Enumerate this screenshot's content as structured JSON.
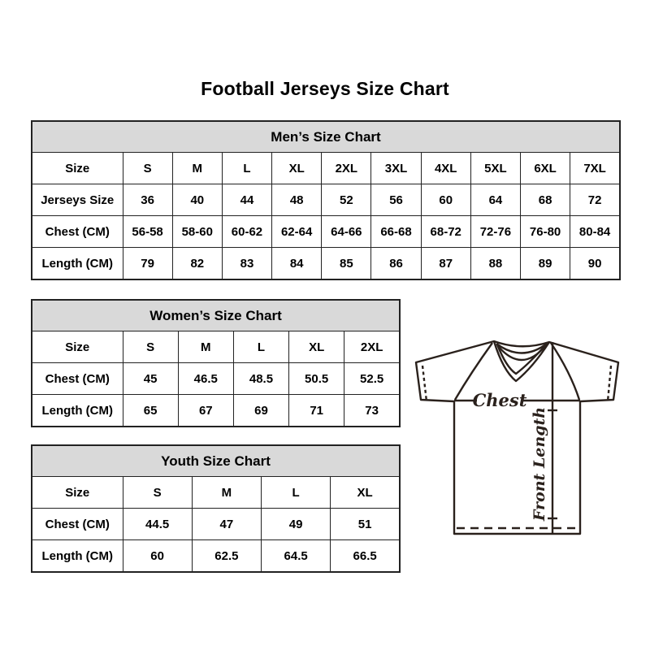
{
  "page": {
    "title": "Football Jerseys Size Chart"
  },
  "colors": {
    "table_border": "#222222",
    "header_bg": "#d9d9d9",
    "text": "#000000",
    "diagram_line": "#2a211c"
  },
  "tables": [
    {
      "id": "mens",
      "title": "Men’s Size Chart",
      "rows": [
        [
          "Size",
          "S",
          "M",
          "L",
          "XL",
          "2XL",
          "3XL",
          "4XL",
          "5XL",
          "6XL",
          "7XL"
        ],
        [
          "Jerseys Size",
          "36",
          "40",
          "44",
          "48",
          "52",
          "56",
          "60",
          "64",
          "68",
          "72"
        ],
        [
          "Chest (CM)",
          "56-58",
          "58-60",
          "60-62",
          "62-64",
          "64-66",
          "66-68",
          "68-72",
          "72-76",
          "76-80",
          "80-84"
        ],
        [
          "Length (CM)",
          "79",
          "82",
          "83",
          "84",
          "85",
          "86",
          "87",
          "88",
          "89",
          "90"
        ]
      ]
    },
    {
      "id": "womens",
      "title": "Women’s Size Chart",
      "rows": [
        [
          "Size",
          "S",
          "M",
          "L",
          "XL",
          "2XL"
        ],
        [
          "Chest (CM)",
          "45",
          "46.5",
          "48.5",
          "50.5",
          "52.5"
        ],
        [
          "Length (CM)",
          "65",
          "67",
          "69",
          "71",
          "73"
        ]
      ]
    },
    {
      "id": "youth",
      "title": "Youth Size Chart",
      "rows": [
        [
          "Size",
          "S",
          "M",
          "L",
          "XL"
        ],
        [
          "Chest (CM)",
          "44.5",
          "47",
          "49",
          "51"
        ],
        [
          "Length (CM)",
          "60",
          "62.5",
          "64.5",
          "66.5"
        ]
      ]
    }
  ],
  "diagram": {
    "chest_label": "Chest",
    "front_length_label": "Front Length"
  }
}
